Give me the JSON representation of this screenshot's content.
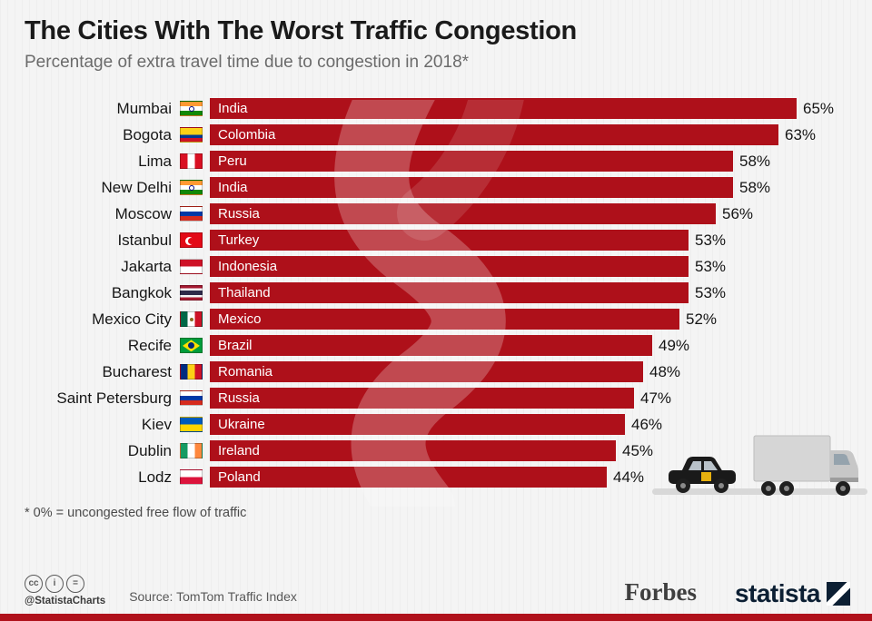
{
  "theme": {
    "accent": "#b0111b",
    "background": "#f4f4f4"
  },
  "header": {
    "title": "The Cities With The Worst Traffic Congestion",
    "subtitle": "Percentage of extra travel time due to congestion in 2018*"
  },
  "footnote": "* 0% = uncongested free flow of traffic",
  "footer": {
    "credit": "@StatistaCharts",
    "source": "Source: TomTom Traffic Index",
    "forbes_logo": "Forbes",
    "statista_logo": "statista",
    "license_icons": [
      {
        "name": "cc-icon",
        "glyph": "cc"
      },
      {
        "name": "attribution-icon",
        "glyph": "i"
      },
      {
        "name": "no-derivatives-icon",
        "glyph": "="
      }
    ]
  },
  "chart_data": {
    "type": "bar",
    "orientation": "horizontal",
    "title": "The Cities With The Worst Traffic Congestion",
    "subtitle": "Percentage of extra travel time due to congestion in 2018*",
    "unit": "%",
    "value_range": [
      0,
      65
    ],
    "bar_color": "#ae101a",
    "grid": false,
    "categories": [
      "Mumbai",
      "Bogota",
      "Lima",
      "New Delhi",
      "Moscow",
      "Istanbul",
      "Jakarta",
      "Bangkok",
      "Mexico City",
      "Recife",
      "Bucharest",
      "Saint Petersburg",
      "Kiev",
      "Dublin",
      "Lodz"
    ],
    "values": [
      65,
      63,
      58,
      58,
      56,
      53,
      53,
      53,
      52,
      49,
      48,
      47,
      46,
      45,
      44
    ],
    "rows": [
      {
        "city": "Mumbai",
        "country": "India",
        "value": 65,
        "flag": "india"
      },
      {
        "city": "Bogota",
        "country": "Colombia",
        "value": 63,
        "flag": "colombia"
      },
      {
        "city": "Lima",
        "country": "Peru",
        "value": 58,
        "flag": "peru"
      },
      {
        "city": "New Delhi",
        "country": "India",
        "value": 58,
        "flag": "india"
      },
      {
        "city": "Moscow",
        "country": "Russia",
        "value": 56,
        "flag": "russia"
      },
      {
        "city": "Istanbul",
        "country": "Turkey",
        "value": 53,
        "flag": "turkey"
      },
      {
        "city": "Jakarta",
        "country": "Indonesia",
        "value": 53,
        "flag": "indonesia"
      },
      {
        "city": "Bangkok",
        "country": "Thailand",
        "value": 53,
        "flag": "thailand"
      },
      {
        "city": "Mexico City",
        "country": "Mexico",
        "value": 52,
        "flag": "mexico"
      },
      {
        "city": "Recife",
        "country": "Brazil",
        "value": 49,
        "flag": "brazil"
      },
      {
        "city": "Bucharest",
        "country": "Romania",
        "value": 48,
        "flag": "romania"
      },
      {
        "city": "Saint Petersburg",
        "country": "Russia",
        "value": 47,
        "flag": "russia"
      },
      {
        "city": "Kiev",
        "country": "Ukraine",
        "value": 46,
        "flag": "ukraine"
      },
      {
        "city": "Dublin",
        "country": "Ireland",
        "value": 45,
        "flag": "ireland"
      },
      {
        "city": "Lodz",
        "country": "Poland",
        "value": 44,
        "flag": "poland"
      }
    ]
  }
}
